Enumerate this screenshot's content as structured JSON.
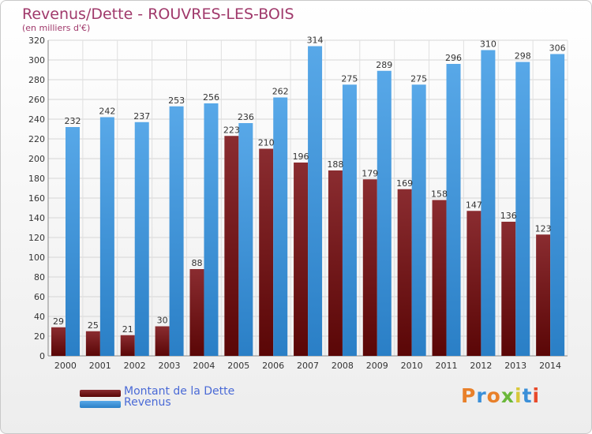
{
  "chart_data": {
    "type": "bar",
    "title": "Revenus/Dette - ROUVRES-LES-BOIS",
    "subtitle": "(en milliers d'€)",
    "categories": [
      "2000",
      "2001",
      "2002",
      "2003",
      "2004",
      "2005",
      "2006",
      "2007",
      "2008",
      "2009",
      "2010",
      "2011",
      "2012",
      "2013",
      "2014"
    ],
    "series": [
      {
        "name": "Montant de la Dette",
        "values": [
          29,
          25,
          21,
          30,
          88,
          223,
          210,
          196,
          188,
          179,
          169,
          158,
          147,
          136,
          123
        ],
        "color": "#7a1a1c"
      },
      {
        "name": "Revenus",
        "values": [
          232,
          242,
          237,
          253,
          256,
          236,
          262,
          314,
          275,
          289,
          275,
          296,
          310,
          298,
          306
        ],
        "color": "#4f9fe0"
      }
    ],
    "ylim": [
      0,
      320
    ],
    "yticks": [
      0,
      20,
      40,
      60,
      80,
      100,
      120,
      140,
      160,
      180,
      200,
      220,
      240,
      260,
      280,
      300,
      320
    ],
    "grid": true,
    "legend": "bottom-left"
  },
  "logo": {
    "text": "Proxiti",
    "colors": [
      "#e8802a",
      "#3a8fd8",
      "#e8802a",
      "#6bb83a",
      "#d8c83a",
      "#3a8fd8",
      "#e84a2a"
    ]
  }
}
